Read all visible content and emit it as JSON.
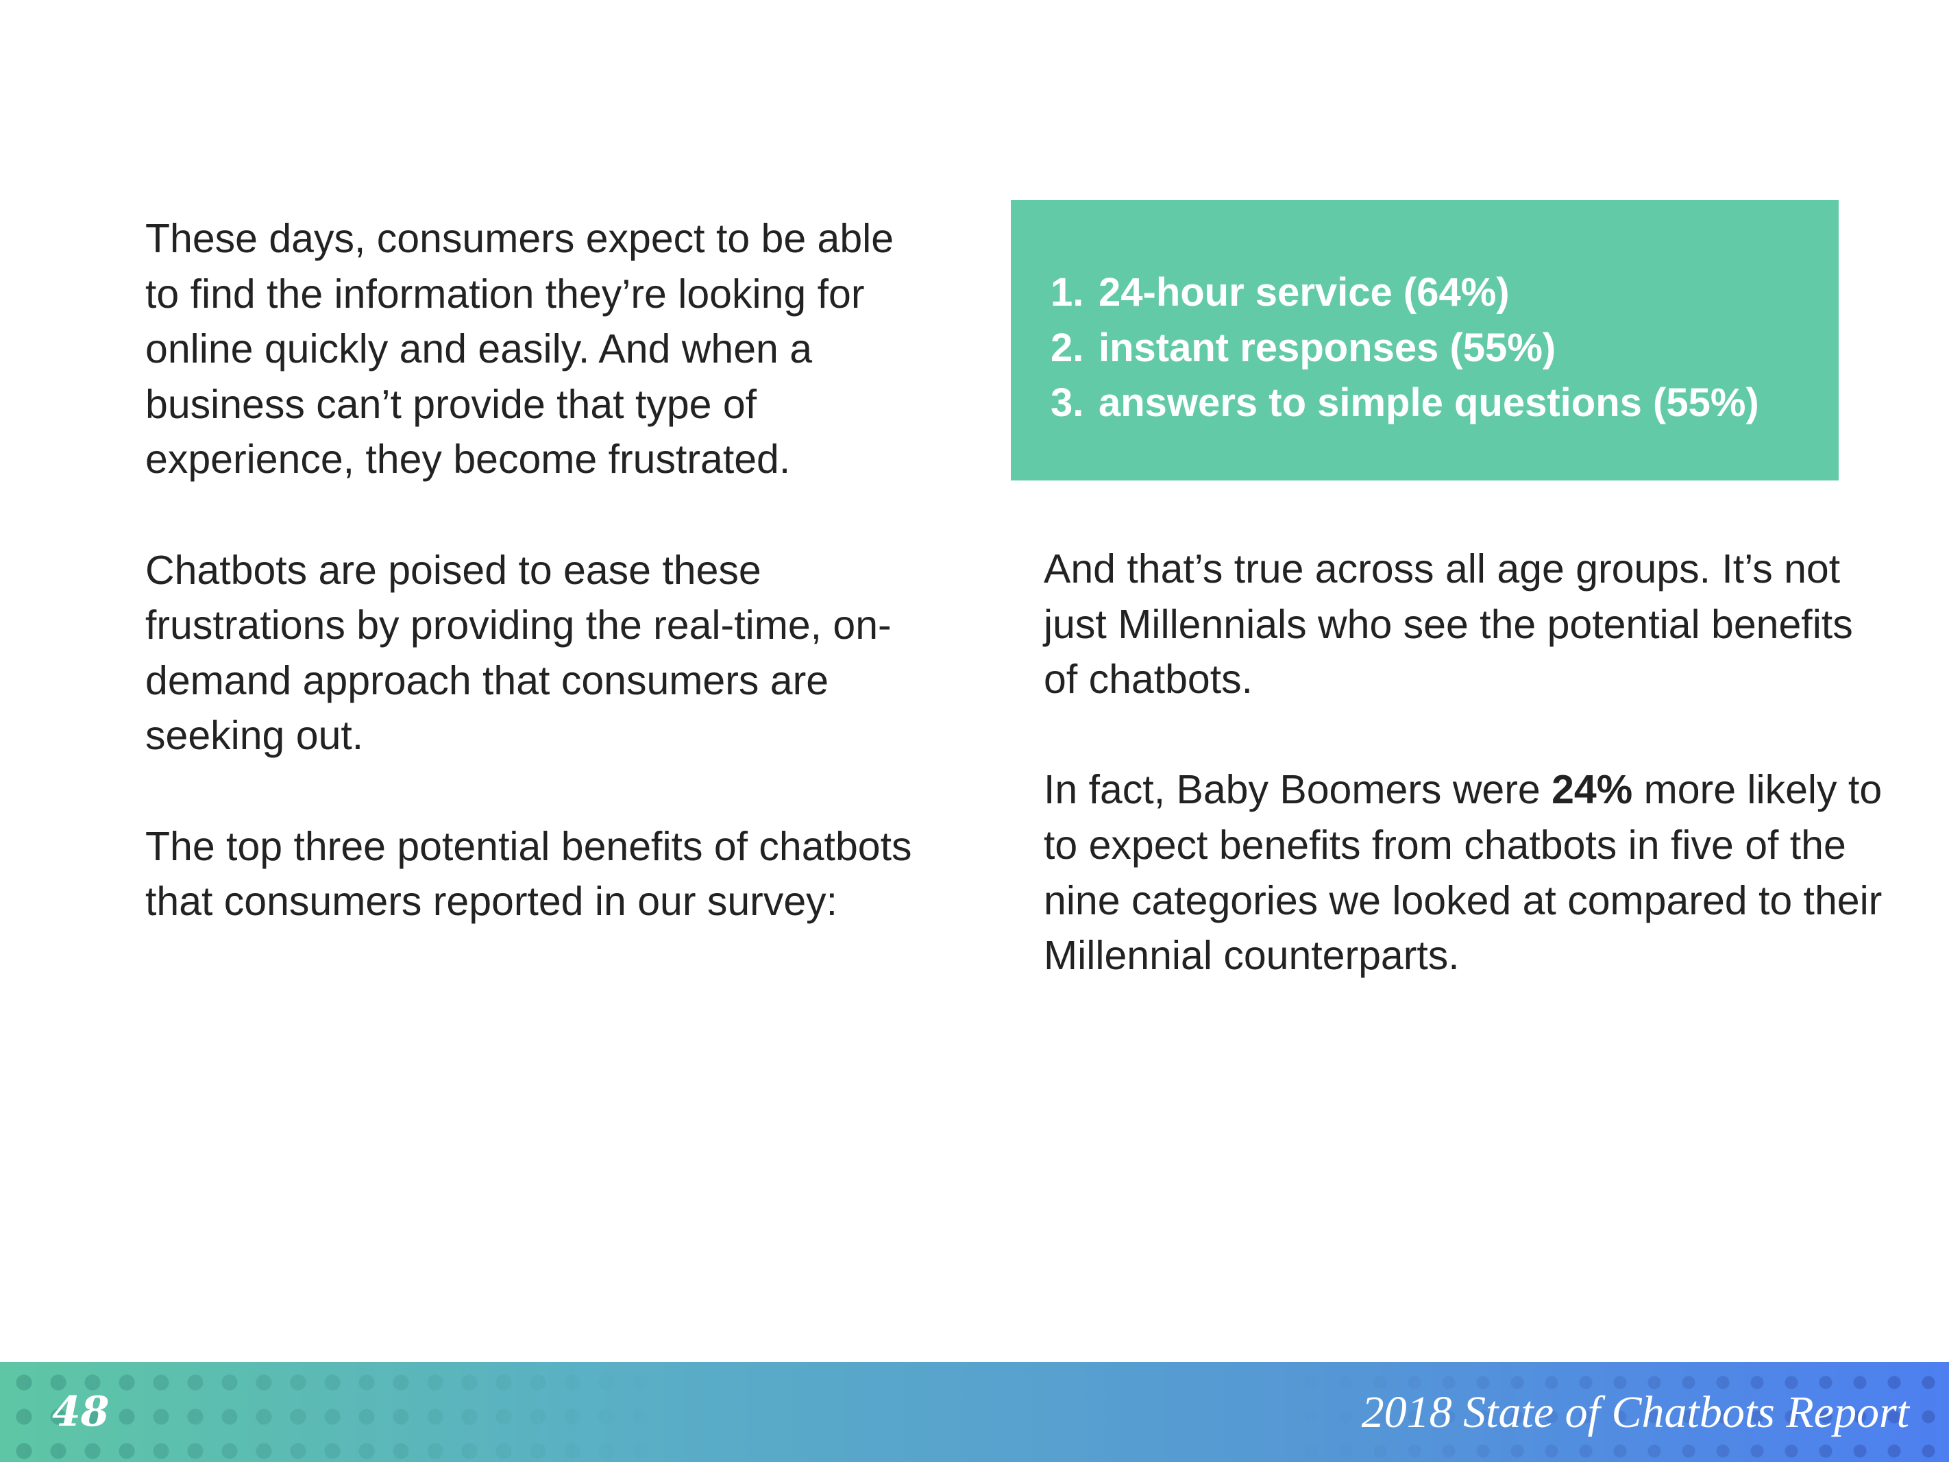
{
  "left_column": {
    "p1": "These days, consumers expect to be able to find the information they’re looking for online quickly and easily. And when a business can’t provide that type of experience, they become frustrated.",
    "p2": "Chatbots are poised to ease these frustrations by providing the real-time, on-demand approach that consumers are seeking out.",
    "p3": "The top three potential benefits of chatbots that consumers reported in our survey:"
  },
  "callout": {
    "background_color": "#63caa8",
    "items": [
      {
        "num": "1.",
        "text": "24-hour service (64%)"
      },
      {
        "num": "2.",
        "text": "instant responses (55%)"
      },
      {
        "num": "3.",
        "text": "answers to simple questions (55%)"
      }
    ]
  },
  "right_column": {
    "p1": "And that’s true across all age groups. It’s not just Millennials who see the potential benefits of chatbots.",
    "p2_before": "In fact, Baby Boomers were ",
    "p2_bold": "24%",
    "p2_after": " more likely to to expect benefits from chatbots in five of the nine categories we looked at compared to their Millennial counterparts."
  },
  "footer": {
    "page_number": "48",
    "report_title": "2018 State of Chatbots Report"
  }
}
